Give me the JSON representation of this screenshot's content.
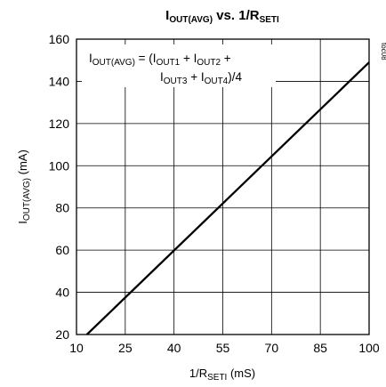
{
  "chart_data": {
    "type": "line",
    "title": {
      "main": "I",
      "sub": "OUT(AVG)",
      "rest": " vs. 1/R",
      "sub2": "SETI"
    },
    "xlabel": {
      "pre": "1/R",
      "sub": "SETI",
      "post": " (mS)"
    },
    "ylabel": {
      "pre": "I",
      "sub": "OUT(AVG)",
      "post": " (mA)"
    },
    "xlim": [
      10,
      100
    ],
    "ylim": [
      20,
      160
    ],
    "xticks": [
      "10",
      "25",
      "40",
      "55",
      "70",
      "85",
      "100"
    ],
    "yticks": [
      "20",
      "40",
      "60",
      "80",
      "100",
      "120",
      "140",
      "160"
    ],
    "grid": true,
    "series": [
      {
        "x": [
          13.2,
          100
        ],
        "y": [
          20,
          149
        ]
      }
    ],
    "annotation": {
      "line1": [
        {
          "t": "I",
          "s": false
        },
        {
          "t": "OUT(AVG)",
          "s": true
        },
        {
          "t": " = (I",
          "s": false
        },
        {
          "t": "OUT1",
          "s": true
        },
        {
          "t": " + I",
          "s": false
        },
        {
          "t": "OUT2",
          "s": true
        },
        {
          "t": " +",
          "s": false
        }
      ],
      "line2": [
        {
          "t": "I",
          "s": false
        },
        {
          "t": "OUT3",
          "s": true
        },
        {
          "t": " + I",
          "s": false
        },
        {
          "t": "OUT4",
          "s": true
        },
        {
          "t": ")/4",
          "s": false
        }
      ]
    },
    "figure_code": "toc08",
    "line_color": "#000000"
  }
}
